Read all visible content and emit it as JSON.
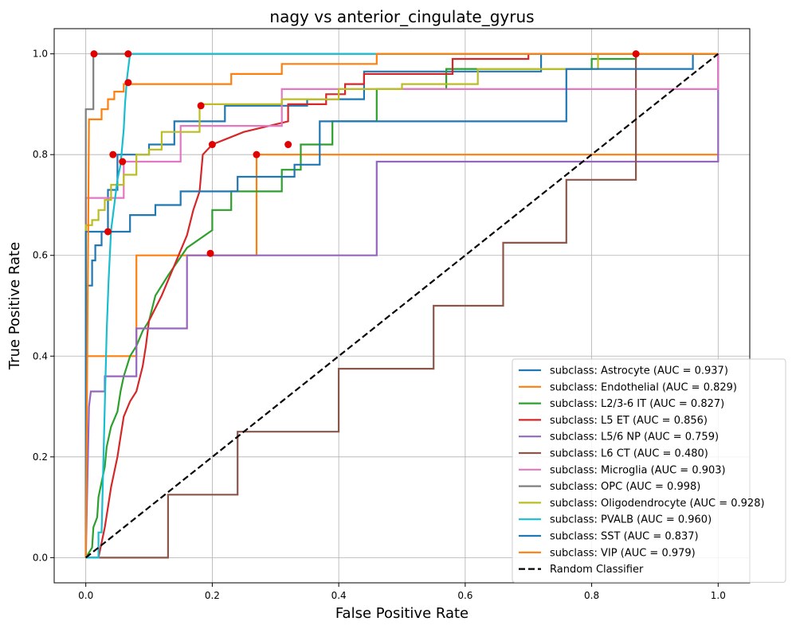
{
  "chart_data": {
    "type": "line",
    "title": "nagy vs anterior_cingulate_gyrus",
    "xlabel": "False Positive Rate",
    "ylabel": "True Positive Rate",
    "xlim": [
      -0.05,
      1.05
    ],
    "ylim": [
      -0.05,
      1.05
    ],
    "xticks": [
      "0.0",
      "0.2",
      "0.4",
      "0.6",
      "0.8",
      "1.0"
    ],
    "yticks": [
      "0.0",
      "0.2",
      "0.4",
      "0.6",
      "0.8",
      "1.0"
    ],
    "grid": true,
    "legend_position": "bottom-right",
    "series": [
      {
        "name": "subclass: Astrocyte (AUC = 0.937)",
        "color": "#1f77b4",
        "points": [
          [
            0,
            0
          ],
          [
            0,
            0.54
          ],
          [
            0.01,
            0.54
          ],
          [
            0.01,
            0.59
          ],
          [
            0.015,
            0.59
          ],
          [
            0.015,
            0.62
          ],
          [
            0.025,
            0.62
          ],
          [
            0.025,
            0.647
          ],
          [
            0.035,
            0.647
          ],
          [
            0.035,
            0.73
          ],
          [
            0.05,
            0.73
          ],
          [
            0.05,
            0.8
          ],
          [
            0.1,
            0.8
          ],
          [
            0.1,
            0.82
          ],
          [
            0.14,
            0.82
          ],
          [
            0.14,
            0.866
          ],
          [
            0.22,
            0.866
          ],
          [
            0.22,
            0.897
          ],
          [
            0.35,
            0.897
          ],
          [
            0.35,
            0.91
          ],
          [
            0.44,
            0.91
          ],
          [
            0.44,
            0.965
          ],
          [
            0.72,
            0.965
          ],
          [
            0.72,
            1
          ],
          [
            1,
            1
          ]
        ]
      },
      {
        "name": "subclass: Endothelial (AUC = 0.829)",
        "color": "#ff7f0e",
        "points": [
          [
            0,
            0
          ],
          [
            0,
            0.4
          ],
          [
            0.08,
            0.4
          ],
          [
            0.08,
            0.6
          ],
          [
            0.27,
            0.6
          ],
          [
            0.27,
            0.8
          ],
          [
            1,
            0.8
          ]
        ]
      },
      {
        "name": "subclass: L2/3-6 IT (AUC = 0.827)",
        "color": "#2ca02c",
        "points": [
          [
            0,
            0
          ],
          [
            0.01,
            0.02
          ],
          [
            0.012,
            0.06
          ],
          [
            0.018,
            0.08
          ],
          [
            0.02,
            0.12
          ],
          [
            0.025,
            0.15
          ],
          [
            0.03,
            0.18
          ],
          [
            0.033,
            0.22
          ],
          [
            0.04,
            0.26
          ],
          [
            0.05,
            0.29
          ],
          [
            0.055,
            0.33
          ],
          [
            0.06,
            0.36
          ],
          [
            0.065,
            0.38
          ],
          [
            0.07,
            0.4
          ],
          [
            0.08,
            0.42
          ],
          [
            0.09,
            0.45
          ],
          [
            0.1,
            0.47
          ],
          [
            0.11,
            0.52
          ],
          [
            0.13,
            0.56
          ],
          [
            0.16,
            0.615
          ],
          [
            0.2,
            0.65
          ],
          [
            0.2,
            0.69
          ],
          [
            0.23,
            0.69
          ],
          [
            0.23,
            0.727
          ],
          [
            0.31,
            0.727
          ],
          [
            0.31,
            0.77
          ],
          [
            0.34,
            0.77
          ],
          [
            0.34,
            0.82
          ],
          [
            0.39,
            0.82
          ],
          [
            0.39,
            0.866
          ],
          [
            0.46,
            0.866
          ],
          [
            0.46,
            0.93
          ],
          [
            0.57,
            0.93
          ],
          [
            0.57,
            0.97
          ],
          [
            0.8,
            0.97
          ],
          [
            0.8,
            0.99
          ],
          [
            0.87,
            0.99
          ],
          [
            0.87,
            1
          ],
          [
            1,
            1
          ]
        ]
      },
      {
        "name": "subclass: L5 ET (AUC = 0.856)",
        "color": "#d62728",
        "points": [
          [
            0,
            0
          ],
          [
            0.02,
            0
          ],
          [
            0.03,
            0.06
          ],
          [
            0.035,
            0.1
          ],
          [
            0.04,
            0.14
          ],
          [
            0.045,
            0.17
          ],
          [
            0.05,
            0.2
          ],
          [
            0.055,
            0.24
          ],
          [
            0.06,
            0.28
          ],
          [
            0.07,
            0.31
          ],
          [
            0.08,
            0.33
          ],
          [
            0.09,
            0.38
          ],
          [
            0.095,
            0.42
          ],
          [
            0.1,
            0.47
          ],
          [
            0.12,
            0.52
          ],
          [
            0.14,
            0.58
          ],
          [
            0.16,
            0.64
          ],
          [
            0.17,
            0.69
          ],
          [
            0.18,
            0.727
          ],
          [
            0.185,
            0.8
          ],
          [
            0.2,
            0.82
          ],
          [
            0.22,
            0.83
          ],
          [
            0.25,
            0.845
          ],
          [
            0.32,
            0.866
          ],
          [
            0.32,
            0.9
          ],
          [
            0.38,
            0.9
          ],
          [
            0.38,
            0.92
          ],
          [
            0.41,
            0.92
          ],
          [
            0.41,
            0.94
          ],
          [
            0.44,
            0.94
          ],
          [
            0.44,
            0.96
          ],
          [
            0.58,
            0.96
          ],
          [
            0.58,
            0.99
          ],
          [
            0.7,
            0.99
          ],
          [
            0.7,
            1
          ],
          [
            1,
            1
          ]
        ]
      },
      {
        "name": "subclass: L5/6 NP (AUC = 0.759)",
        "color": "#9467bd",
        "points": [
          [
            0,
            0
          ],
          [
            0.005,
            0.3
          ],
          [
            0.008,
            0.33
          ],
          [
            0.03,
            0.33
          ],
          [
            0.03,
            0.36
          ],
          [
            0.08,
            0.36
          ],
          [
            0.08,
            0.455
          ],
          [
            0.16,
            0.455
          ],
          [
            0.16,
            0.6
          ],
          [
            0.46,
            0.6
          ],
          [
            0.46,
            0.786
          ],
          [
            1,
            0.786
          ],
          [
            1,
            1
          ]
        ]
      },
      {
        "name": "subclass: L6 CT (AUC = 0.480)",
        "color": "#8c564b",
        "points": [
          [
            0,
            0
          ],
          [
            0.13,
            0
          ],
          [
            0.13,
            0.125
          ],
          [
            0.24,
            0.125
          ],
          [
            0.24,
            0.25
          ],
          [
            0.4,
            0.25
          ],
          [
            0.4,
            0.375
          ],
          [
            0.55,
            0.375
          ],
          [
            0.55,
            0.5
          ],
          [
            0.66,
            0.5
          ],
          [
            0.66,
            0.625
          ],
          [
            0.76,
            0.625
          ],
          [
            0.76,
            0.75
          ],
          [
            0.87,
            0.75
          ],
          [
            0.87,
            1
          ],
          [
            1,
            1
          ]
        ]
      },
      {
        "name": "subclass: Microglia (AUC = 0.903)",
        "color": "#e377c2",
        "points": [
          [
            0,
            0
          ],
          [
            0,
            0.714
          ],
          [
            0.06,
            0.714
          ],
          [
            0.06,
            0.786
          ],
          [
            0.15,
            0.786
          ],
          [
            0.15,
            0.857
          ],
          [
            0.31,
            0.857
          ],
          [
            0.31,
            0.93
          ],
          [
            1,
            0.93
          ],
          [
            1,
            1
          ]
        ]
      },
      {
        "name": "subclass: OPC (AUC = 0.998)",
        "color": "#7f7f7f",
        "points": [
          [
            0,
            0
          ],
          [
            0,
            0.89
          ],
          [
            0.012,
            0.89
          ],
          [
            0.012,
            1
          ],
          [
            1,
            1
          ]
        ]
      },
      {
        "name": "subclass: Oligodendrocyte (AUC = 0.928)",
        "color": "#bcbd22",
        "points": [
          [
            0,
            0
          ],
          [
            0,
            0.66
          ],
          [
            0.01,
            0.66
          ],
          [
            0.01,
            0.67
          ],
          [
            0.02,
            0.67
          ],
          [
            0.02,
            0.69
          ],
          [
            0.03,
            0.69
          ],
          [
            0.03,
            0.71
          ],
          [
            0.04,
            0.71
          ],
          [
            0.04,
            0.74
          ],
          [
            0.06,
            0.74
          ],
          [
            0.06,
            0.76
          ],
          [
            0.08,
            0.76
          ],
          [
            0.08,
            0.8
          ],
          [
            0.1,
            0.8
          ],
          [
            0.1,
            0.81
          ],
          [
            0.12,
            0.81
          ],
          [
            0.12,
            0.845
          ],
          [
            0.18,
            0.845
          ],
          [
            0.18,
            0.9
          ],
          [
            0.31,
            0.9
          ],
          [
            0.31,
            0.91
          ],
          [
            0.4,
            0.91
          ],
          [
            0.4,
            0.93
          ],
          [
            0.5,
            0.93
          ],
          [
            0.5,
            0.94
          ],
          [
            0.62,
            0.94
          ],
          [
            0.62,
            0.97
          ],
          [
            0.81,
            0.97
          ],
          [
            0.81,
            1
          ],
          [
            1,
            1
          ]
        ]
      },
      {
        "name": "subclass: PVALB (AUC = 0.960)",
        "color": "#17becf",
        "points": [
          [
            0,
            0
          ],
          [
            0.02,
            0
          ],
          [
            0.02,
            0.05
          ],
          [
            0.025,
            0.05
          ],
          [
            0.028,
            0.2
          ],
          [
            0.03,
            0.3
          ],
          [
            0.033,
            0.45
          ],
          [
            0.036,
            0.55
          ],
          [
            0.04,
            0.65
          ],
          [
            0.045,
            0.7
          ],
          [
            0.05,
            0.75
          ],
          [
            0.055,
            0.78
          ],
          [
            0.06,
            0.85
          ],
          [
            0.062,
            0.9
          ],
          [
            0.065,
            0.95
          ],
          [
            0.07,
            1
          ],
          [
            1,
            1
          ]
        ]
      },
      {
        "name": "subclass: SST (AUC = 0.837)",
        "color": "#1f77b4",
        "points": [
          [
            0,
            0
          ],
          [
            0,
            0.647
          ],
          [
            0.07,
            0.647
          ],
          [
            0.07,
            0.68
          ],
          [
            0.11,
            0.68
          ],
          [
            0.11,
            0.7
          ],
          [
            0.15,
            0.7
          ],
          [
            0.15,
            0.727
          ],
          [
            0.24,
            0.727
          ],
          [
            0.24,
            0.756
          ],
          [
            0.33,
            0.756
          ],
          [
            0.33,
            0.78
          ],
          [
            0.37,
            0.78
          ],
          [
            0.37,
            0.866
          ],
          [
            0.76,
            0.866
          ],
          [
            0.76,
            0.97
          ],
          [
            0.96,
            0.97
          ],
          [
            0.96,
            1
          ],
          [
            1,
            1
          ]
        ]
      },
      {
        "name": "subclass: VIP (AUC = 0.979)",
        "color": "#ff7f0e",
        "points": [
          [
            0,
            0
          ],
          [
            0.005,
            0.87
          ],
          [
            0.025,
            0.87
          ],
          [
            0.025,
            0.89
          ],
          [
            0.035,
            0.89
          ],
          [
            0.035,
            0.91
          ],
          [
            0.045,
            0.91
          ],
          [
            0.045,
            0.925
          ],
          [
            0.06,
            0.925
          ],
          [
            0.06,
            0.94
          ],
          [
            0.23,
            0.94
          ],
          [
            0.23,
            0.96
          ],
          [
            0.31,
            0.96
          ],
          [
            0.31,
            0.98
          ],
          [
            0.46,
            0.98
          ],
          [
            0.46,
            1
          ],
          [
            1,
            1
          ]
        ]
      },
      {
        "name": "Random Classifier",
        "color": "#000000",
        "dashed": true,
        "points": [
          [
            0,
            0
          ],
          [
            1,
            1
          ]
        ]
      }
    ],
    "markers": {
      "color": "#e00000",
      "points": [
        [
          0.013,
          1
        ],
        [
          0.067,
          1
        ],
        [
          0.067,
          0.943
        ],
        [
          0.182,
          0.897
        ],
        [
          0.043,
          0.8
        ],
        [
          0.058,
          0.786
        ],
        [
          0.2,
          0.82
        ],
        [
          0.27,
          0.8
        ],
        [
          0.32,
          0.82
        ],
        [
          0.035,
          0.647
        ],
        [
          0.197,
          0.604
        ],
        [
          0.87,
          1
        ]
      ]
    }
  }
}
